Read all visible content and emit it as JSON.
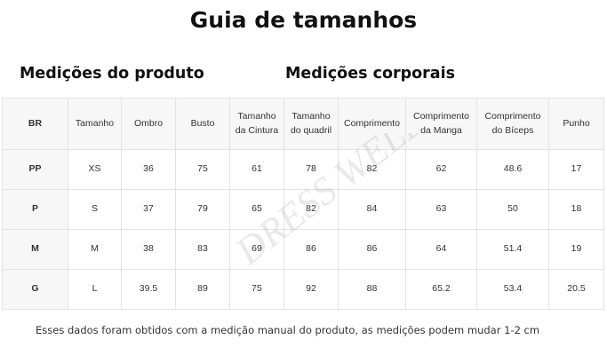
{
  "title": "Guia de tamanhos",
  "sections": {
    "product": "Medições do produto",
    "body": "Medições corporais"
  },
  "table": {
    "headers": [
      "BR",
      "Tamanho",
      "Ombro",
      "Busto",
      "Tamanho da Cintura",
      "Tamanho do quadril",
      "Comprimento",
      "Comprimento da Manga",
      "Comprimento do Bíceps",
      "Punho"
    ],
    "rows": [
      [
        "PP",
        "XS",
        "36",
        "75",
        "61",
        "78",
        "82",
        "62",
        "48.6",
        "17"
      ],
      [
        "P",
        "S",
        "37",
        "79",
        "65",
        "82",
        "84",
        "63",
        "50",
        "18"
      ],
      [
        "M",
        "M",
        "38",
        "83",
        "69",
        "86",
        "86",
        "64",
        "51.4",
        "19"
      ],
      [
        "G",
        "L",
        "39.5",
        "89",
        "75",
        "92",
        "88",
        "65.2",
        "53.4",
        "20.5"
      ]
    ]
  },
  "watermark": "DRESS WELL GIRL",
  "footnote": "Esses dados foram obtidos com a medição manual do produto, as medições podem mudar 1-2 cm"
}
